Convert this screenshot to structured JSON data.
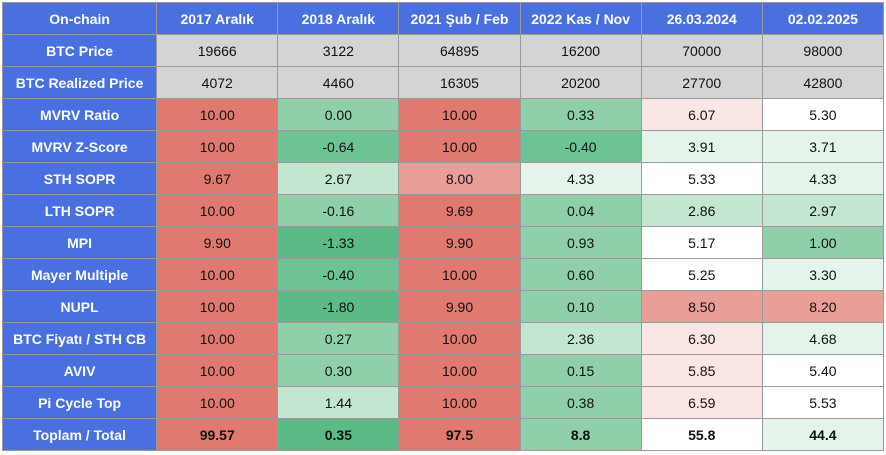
{
  "table": {
    "header": [
      "On-chain",
      "2017 Aralık",
      "2018 Aralık",
      "2021 Şub / Feb",
      "2022 Kas / Nov",
      "26.03.2024",
      "02.02.2025"
    ],
    "colors": {
      "header_bg": "#4a6fe0",
      "gray": "#d4d4d4",
      "red_strong": "#e07a70",
      "red_medium": "#e99e97",
      "red_light": "#f4d2cf",
      "red_faint": "#fae7e5",
      "white": "#ffffff",
      "green_faint": "#e4f4ea",
      "green_light": "#c3e6d0",
      "green_medium": "#8fd0aa",
      "green_strong": "#6dc393",
      "green_deep": "#5cba86"
    },
    "rows": [
      {
        "label": "BTC Price",
        "cells": [
          {
            "v": "19666",
            "c": "gray"
          },
          {
            "v": "3122",
            "c": "gray"
          },
          {
            "v": "64895",
            "c": "gray"
          },
          {
            "v": "16200",
            "c": "gray"
          },
          {
            "v": "70000",
            "c": "gray"
          },
          {
            "v": "98000",
            "c": "gray"
          }
        ]
      },
      {
        "label": "BTC Realized Price",
        "cells": [
          {
            "v": "4072",
            "c": "gray"
          },
          {
            "v": "4460",
            "c": "gray"
          },
          {
            "v": "16305",
            "c": "gray"
          },
          {
            "v": "20200",
            "c": "gray"
          },
          {
            "v": "27700",
            "c": "gray"
          },
          {
            "v": "42800",
            "c": "gray"
          }
        ]
      },
      {
        "label": "MVRV Ratio",
        "cells": [
          {
            "v": "10.00",
            "c": "red_strong"
          },
          {
            "v": "0.00",
            "c": "green_medium"
          },
          {
            "v": "10.00",
            "c": "red_strong"
          },
          {
            "v": "0.33",
            "c": "green_medium"
          },
          {
            "v": "6.07",
            "c": "red_faint"
          },
          {
            "v": "5.30",
            "c": "white"
          }
        ]
      },
      {
        "label": "MVRV Z-Score",
        "cells": [
          {
            "v": "10.00",
            "c": "red_strong"
          },
          {
            "v": "-0.64",
            "c": "green_strong"
          },
          {
            "v": "10.00",
            "c": "red_strong"
          },
          {
            "v": "-0.40",
            "c": "green_strong"
          },
          {
            "v": "3.91",
            "c": "green_faint"
          },
          {
            "v": "3.71",
            "c": "green_faint"
          }
        ]
      },
      {
        "label": "STH SOPR",
        "cells": [
          {
            "v": "9.67",
            "c": "red_strong"
          },
          {
            "v": "2.67",
            "c": "green_light"
          },
          {
            "v": "8.00",
            "c": "red_medium"
          },
          {
            "v": "4.33",
            "c": "green_faint"
          },
          {
            "v": "5.33",
            "c": "white"
          },
          {
            "v": "4.33",
            "c": "green_faint"
          }
        ]
      },
      {
        "label": "LTH SOPR",
        "cells": [
          {
            "v": "10.00",
            "c": "red_strong"
          },
          {
            "v": "-0.16",
            "c": "green_medium"
          },
          {
            "v": "9.69",
            "c": "red_strong"
          },
          {
            "v": "0.04",
            "c": "green_medium"
          },
          {
            "v": "2.86",
            "c": "green_light"
          },
          {
            "v": "2.97",
            "c": "green_light"
          }
        ]
      },
      {
        "label": "MPI",
        "cells": [
          {
            "v": "9.90",
            "c": "red_strong"
          },
          {
            "v": "-1.33",
            "c": "green_deep"
          },
          {
            "v": "9.90",
            "c": "red_strong"
          },
          {
            "v": "0.93",
            "c": "green_medium"
          },
          {
            "v": "5.17",
            "c": "white"
          },
          {
            "v": "1.00",
            "c": "green_medium"
          }
        ]
      },
      {
        "label": "Mayer Multiple",
        "cells": [
          {
            "v": "10.00",
            "c": "red_strong"
          },
          {
            "v": "-0.40",
            "c": "green_strong"
          },
          {
            "v": "10.00",
            "c": "red_strong"
          },
          {
            "v": "0.60",
            "c": "green_medium"
          },
          {
            "v": "5.25",
            "c": "white"
          },
          {
            "v": "3.30",
            "c": "green_faint"
          }
        ]
      },
      {
        "label": "NUPL",
        "cells": [
          {
            "v": "10.00",
            "c": "red_strong"
          },
          {
            "v": "-1.80",
            "c": "green_deep"
          },
          {
            "v": "9.90",
            "c": "red_strong"
          },
          {
            "v": "0.10",
            "c": "green_medium"
          },
          {
            "v": "8.50",
            "c": "red_medium"
          },
          {
            "v": "8.20",
            "c": "red_medium"
          }
        ]
      },
      {
        "label": "BTC Fiyatı / STH CB",
        "cells": [
          {
            "v": "10.00",
            "c": "red_strong"
          },
          {
            "v": "0.27",
            "c": "green_medium"
          },
          {
            "v": "10.00",
            "c": "red_strong"
          },
          {
            "v": "2.36",
            "c": "green_light"
          },
          {
            "v": "6.30",
            "c": "red_faint"
          },
          {
            "v": "4.68",
            "c": "green_faint"
          }
        ]
      },
      {
        "label": "AVIV",
        "cells": [
          {
            "v": "10.00",
            "c": "red_strong"
          },
          {
            "v": "0.30",
            "c": "green_medium"
          },
          {
            "v": "10.00",
            "c": "red_strong"
          },
          {
            "v": "0.15",
            "c": "green_medium"
          },
          {
            "v": "5.85",
            "c": "red_faint"
          },
          {
            "v": "5.40",
            "c": "white"
          }
        ]
      },
      {
        "label": "Pi Cycle Top",
        "cells": [
          {
            "v": "10.00",
            "c": "red_strong"
          },
          {
            "v": "1.44",
            "c": "green_light"
          },
          {
            "v": "10.00",
            "c": "red_strong"
          },
          {
            "v": "0.38",
            "c": "green_medium"
          },
          {
            "v": "6.59",
            "c": "red_faint"
          },
          {
            "v": "5.53",
            "c": "white"
          }
        ]
      },
      {
        "label": "Toplam / Total",
        "total": true,
        "cells": [
          {
            "v": "99.57",
            "c": "red_strong"
          },
          {
            "v": "0.35",
            "c": "green_deep"
          },
          {
            "v": "97.5",
            "c": "red_strong"
          },
          {
            "v": "8.8",
            "c": "green_medium"
          },
          {
            "v": "55.8",
            "c": "white"
          },
          {
            "v": "44.4",
            "c": "green_faint"
          }
        ]
      }
    ]
  }
}
